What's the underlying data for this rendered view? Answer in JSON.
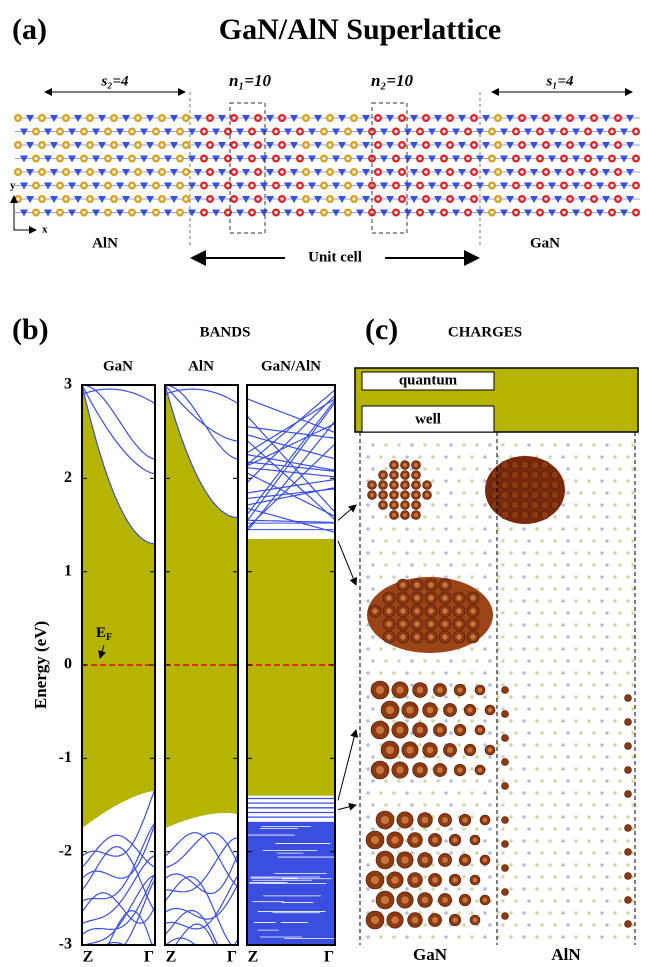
{
  "panel_a": {
    "label": "(a)",
    "title": "GaN/AlN  Superlattice",
    "s_left": "s₂=4",
    "n_left": "n₁=10",
    "n_right": "n₂=10",
    "s_right": "s₁=4",
    "left_material": "AlN",
    "unit_cell": "Unit cell",
    "right_material": "GaN",
    "axis_y": "y",
    "axis_x": "x"
  },
  "panel_b": {
    "label": "(b)",
    "title": "BANDS",
    "subpanels": [
      "GaN",
      "AlN",
      "GaN/AlN"
    ],
    "y_axis_label": "Energy (eV)",
    "yticks": [
      3,
      2,
      1,
      0,
      -1,
      -2,
      -3
    ],
    "fermi_label": "E",
    "fermi_subscript": "F",
    "x_labels": [
      "Z",
      "Γ"
    ]
  },
  "panel_c": {
    "label": "(c)",
    "title": "CHARGES",
    "well_top": "quantum",
    "well_bottom": "well",
    "materials": [
      "GaN",
      "AlN"
    ]
  }
}
